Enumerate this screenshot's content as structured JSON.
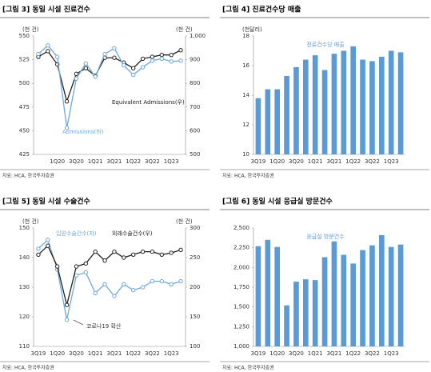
{
  "chart_data": [
    {
      "type": "line",
      "title": "[그림 3] 동일 시설 진료건수",
      "source": "자료: HCA, 한국투자증권",
      "y_label": "(천 건)",
      "y2_label": "(천 건)",
      "categories": [
        null,
        null,
        "1Q20",
        null,
        "3Q20",
        null,
        "1Q21",
        null,
        "3Q21",
        null,
        "1Q22",
        null,
        "3Q22",
        null,
        "1Q23",
        null
      ],
      "ylim": [
        425,
        550
      ],
      "yticks": [
        425,
        450,
        475,
        500,
        525,
        550
      ],
      "y2lim": [
        500,
        1000
      ],
      "y2ticks": [
        500,
        600,
        700,
        800,
        900,
        {
          "value": 1000,
          "label": "1,000"
        }
      ],
      "series": [
        {
          "name": "Equivalent Admissions(우)",
          "color": "#222222",
          "axis": "y2",
          "values": [
            912,
            936,
            880,
            724,
            840,
            864,
            832,
            908,
            908,
            888,
            864,
            904,
            912,
            920,
            920,
            940
          ]
        },
        {
          "name": "Admissions(좌)",
          "color": "#6fa8dc",
          "values": [
            531,
            540,
            528,
            453,
            505,
            521,
            507,
            531,
            537,
            519,
            509,
            517,
            524,
            526,
            523,
            524
          ]
        }
      ]
    },
    {
      "type": "bar",
      "title": "[그림 4] 진료건수당 매출",
      "source": "자료: HCA, 한국투자증권",
      "y_label": "(천달러)",
      "categories": [
        "3Q19",
        null,
        "1Q20",
        null,
        "3Q20",
        null,
        "1Q21",
        null,
        "3Q21",
        null,
        "1Q22",
        null,
        "3Q22",
        null,
        "1Q23",
        null
      ],
      "ylim": [
        10,
        18
      ],
      "yticks": [
        10,
        12,
        14,
        16,
        18
      ],
      "series": [
        {
          "name": "진료건수당 매출",
          "color": "#5b9bd5",
          "values": [
            13.8,
            14.4,
            14.4,
            15.3,
            15.9,
            16.4,
            16.7,
            15.7,
            16.8,
            17.0,
            17.3,
            16.4,
            16.3,
            16.6,
            17.0,
            16.9
          ]
        }
      ]
    },
    {
      "type": "line",
      "title": "[그림 5] 동일 시설 수술건수",
      "source": "자료: HCA, 한국투자증권",
      "y_label": "(천 건)",
      "y2_label": "(천 건)",
      "annotation": "코로나19 확산",
      "categories": [
        "3Q19",
        null,
        "1Q20",
        null,
        "3Q20",
        null,
        "1Q21",
        null,
        "3Q21",
        null,
        "1Q22",
        null,
        "3Q22",
        null,
        "1Q23",
        null
      ],
      "ylim": [
        110,
        150
      ],
      "yticks": [
        110,
        120,
        130,
        140,
        150
      ],
      "y2lim": [
        100,
        300
      ],
      "y2ticks": [
        100,
        150,
        200,
        250,
        300
      ],
      "series": [
        {
          "name": "입원수술건수(좌)",
          "color": "#6fa8dc",
          "values": [
            143,
            146,
            136,
            119,
            134,
            135,
            128,
            131,
            127,
            131,
            129,
            130,
            132,
            132,
            131,
            132
          ]
        },
        {
          "name": "외래수술건수(우)",
          "color": "#222222",
          "axis": "y2",
          "values": [
            255,
            270,
            235,
            170,
            235,
            240,
            260,
            245,
            260,
            250,
            255,
            260,
            260,
            255,
            258,
            263
          ]
        }
      ]
    },
    {
      "type": "bar",
      "title": "[그림 6] 동일 시설 응급실 방문건수",
      "source": "자료: HCA, 한국투자증권",
      "categories": [
        "3Q19",
        null,
        "1Q20",
        null,
        "3Q20",
        null,
        "1Q21",
        null,
        "3Q21",
        null,
        "1Q22",
        null,
        "3Q22",
        null,
        "1Q23",
        null
      ],
      "ylim": [
        1000,
        2500
      ],
      "yticks": [
        {
          "value": 1000,
          "label": "1,000"
        },
        {
          "value": 1250,
          "label": "1,250"
        },
        {
          "value": 1500,
          "label": "1,500"
        },
        {
          "value": 1750,
          "label": "1,750"
        },
        {
          "value": 2000,
          "label": "2,000"
        },
        {
          "value": 2250,
          "label": "2,250"
        },
        {
          "value": 2500,
          "label": "2,500"
        }
      ],
      "series": [
        {
          "name": "응급실 방문건수",
          "color": "#5b9bd5",
          "values": [
            2270,
            2350,
            2260,
            1520,
            1820,
            1850,
            1840,
            2130,
            2330,
            2160,
            2050,
            2220,
            2280,
            2410,
            2260,
            2290
          ]
        }
      ]
    }
  ]
}
